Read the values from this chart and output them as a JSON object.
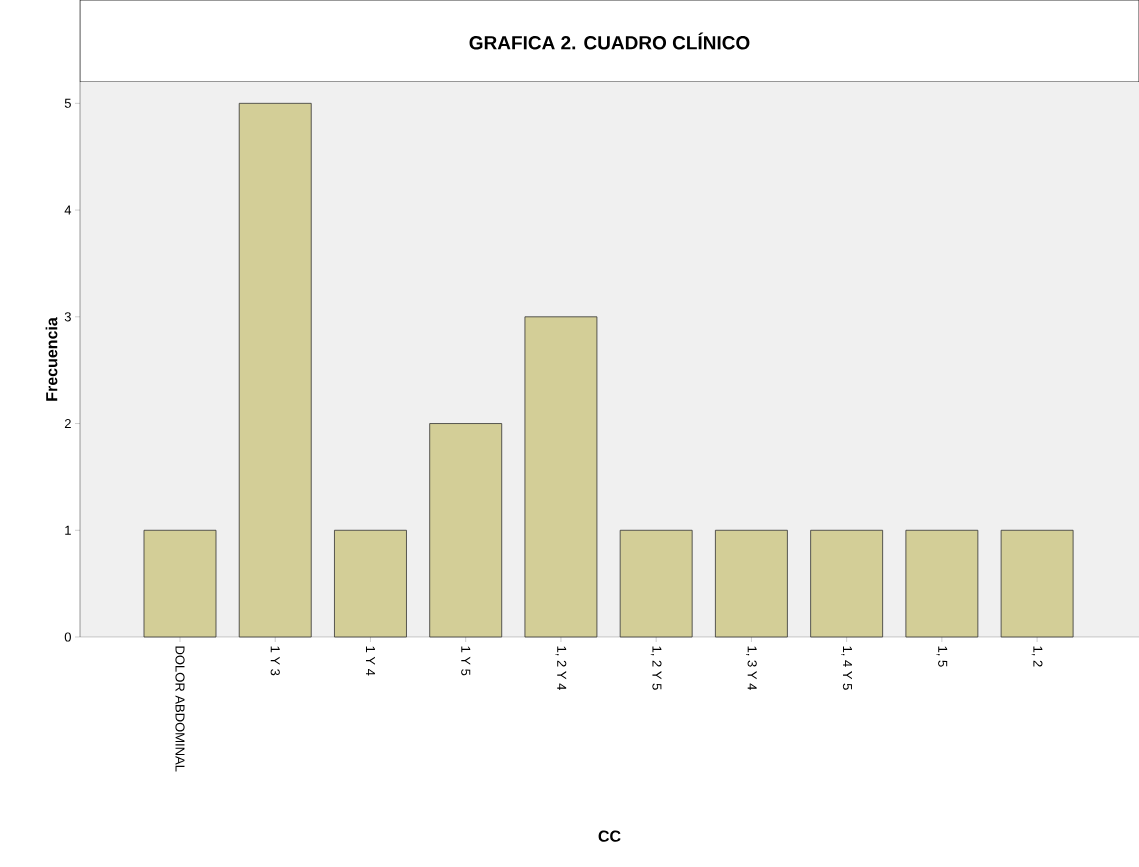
{
  "chart_data": {
    "type": "bar",
    "title": "GRAFICA 2. CUADRO CLÍNICO",
    "xlabel": "CC",
    "ylabel": "Frecuencia",
    "categories": [
      "DOLOR ABDOMINAL",
      "1 Y 3",
      "1 Y 4",
      "1 Y 5",
      "1, 2 Y 4",
      "1, 2 Y 5",
      "1, 3 Y 4",
      "1, 4 Y 5",
      "1, 5",
      "1, 2"
    ],
    "values": [
      1,
      5,
      1,
      2,
      3,
      1,
      1,
      1,
      1,
      1
    ],
    "color": "#d3ce97",
    "ylim": [
      0,
      5.2
    ],
    "yticks": [
      0,
      1,
      2,
      3,
      4,
      5
    ],
    "grid": false
  }
}
